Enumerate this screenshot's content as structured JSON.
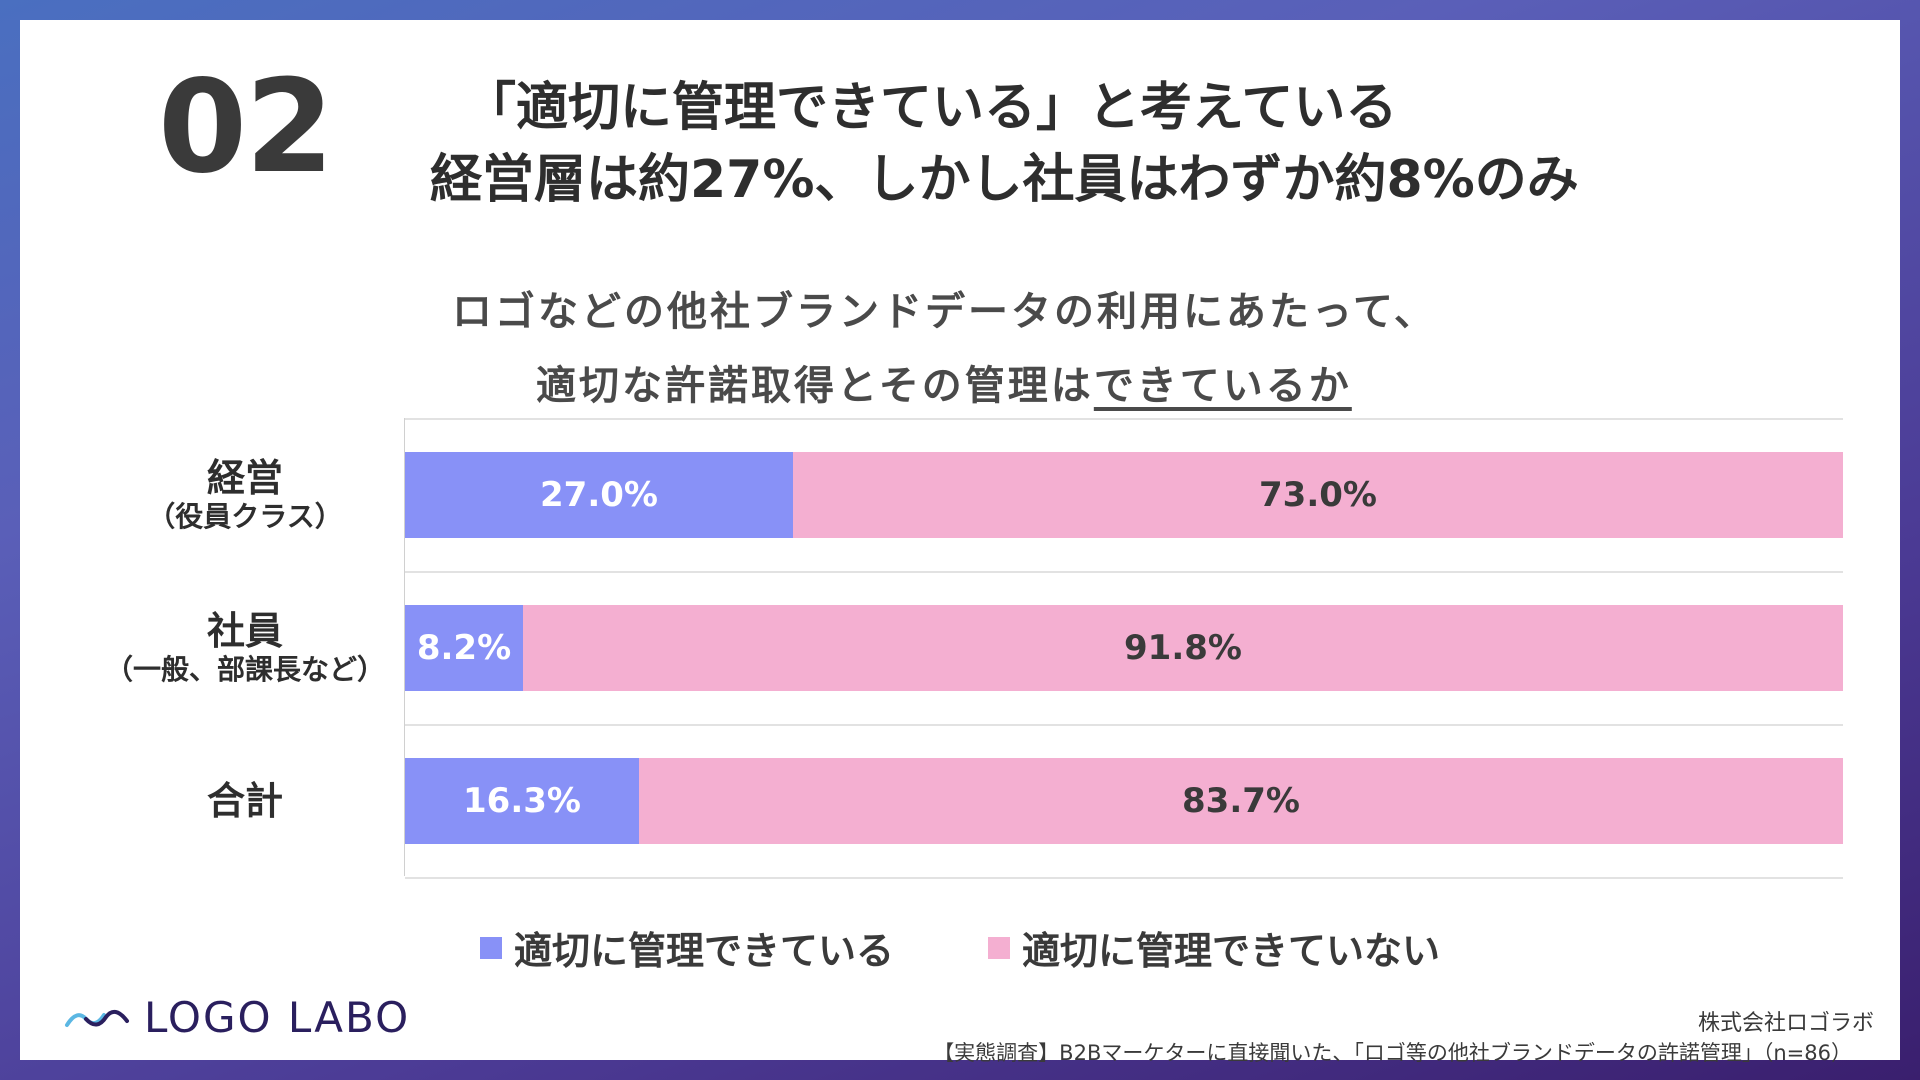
{
  "slide": {
    "number": "02",
    "headline_line1": "「適切に管理できている」と考えている",
    "headline_line2": "経営層は約27%、しかし社員はわずか約8%のみ",
    "question_line1": "ロゴなどの他社ブランドデータの利用にあたって、",
    "question_line2_prefix": "適切な許諾取得とその管理は",
    "question_line2_underlined": "できているか"
  },
  "colors": {
    "managed": "#8891f7",
    "not_managed": "#f4afd1",
    "managed_label": "#ffffff",
    "not_managed_label": "#3a3a3a"
  },
  "chart_data": {
    "type": "bar",
    "orientation": "horizontal",
    "stacked": true,
    "percent_scale": [
      0,
      100
    ],
    "categories": [
      {
        "main": "経営",
        "sub": "（役員クラス）"
      },
      {
        "main": "社員",
        "sub": "（一般、部課長など）"
      },
      {
        "main": "合計",
        "sub": ""
      }
    ],
    "series": [
      {
        "name": "適切に管理できている",
        "values": [
          27.0,
          8.2,
          16.3
        ],
        "labels": [
          "27.0%",
          "8.2%",
          "16.3%"
        ]
      },
      {
        "name": "適切に管理できていない",
        "values": [
          73.0,
          91.8,
          83.7
        ],
        "labels": [
          "73.0%",
          "91.8%",
          "83.7%"
        ]
      }
    ],
    "legend_position": "bottom"
  },
  "footer": {
    "logo_text": "LOGO LABO",
    "company": "株式会社ロゴラボ",
    "source": "【実態調査】B2Bマーケターに直接聞いた、「ロゴ等の他社ブランドデータの許諾管理」（n=86）"
  }
}
